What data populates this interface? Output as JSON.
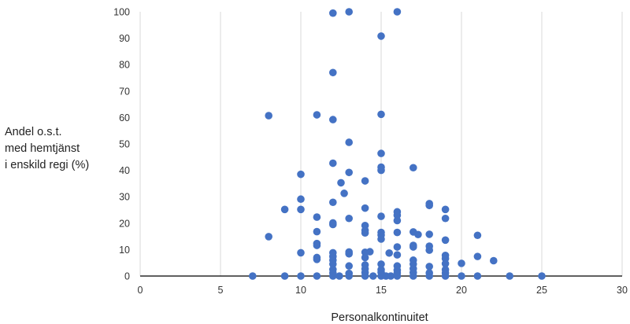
{
  "chart_data": {
    "type": "scatter",
    "title": "",
    "xlabel": "Personalkontinuitet",
    "ylabel_lines": [
      "Andel o.s.t.",
      "med hemtjänst",
      "i enskild regi (%)"
    ],
    "xlim": [
      0,
      30
    ],
    "ylim": [
      0,
      100
    ],
    "xticks": [
      "0",
      "5",
      "10",
      "15",
      "20",
      "25",
      "30"
    ],
    "yticks": [
      "0",
      "10",
      "20",
      "30",
      "40",
      "50",
      "60",
      "70",
      "80",
      "90",
      "100"
    ],
    "grid": "vertical",
    "marker_color": "#4472C4",
    "points": [
      [
        12,
        99.5
      ],
      [
        13,
        100
      ],
      [
        16,
        100
      ],
      [
        15,
        90.8
      ],
      [
        12,
        77
      ],
      [
        8,
        60.7
      ],
      [
        11,
        61
      ],
      [
        12,
        59.2
      ],
      [
        15,
        61.2
      ],
      [
        13,
        50.6
      ],
      [
        15,
        46.4
      ],
      [
        12,
        42.7
      ],
      [
        15,
        41.2
      ],
      [
        15,
        40
      ],
      [
        17,
        41
      ],
      [
        10,
        38.5
      ],
      [
        13,
        39.2
      ],
      [
        12.5,
        35.3
      ],
      [
        14,
        36
      ],
      [
        12.7,
        31.3
      ],
      [
        10,
        29.1
      ],
      [
        12,
        27.9
      ],
      [
        18,
        27.4
      ],
      [
        18,
        26.7
      ],
      [
        9,
        25.2
      ],
      [
        10,
        25.2
      ],
      [
        14,
        25.7
      ],
      [
        16,
        24.3
      ],
      [
        19,
        25.2
      ],
      [
        11,
        22.3
      ],
      [
        13,
        21.8
      ],
      [
        15,
        22.6
      ],
      [
        16,
        23
      ],
      [
        16,
        21
      ],
      [
        19,
        21.8
      ],
      [
        12,
        20.1
      ],
      [
        12,
        19.5
      ],
      [
        14,
        19.1
      ],
      [
        14,
        17.3
      ],
      [
        14,
        16.3
      ],
      [
        11,
        16.8
      ],
      [
        15,
        16.5
      ],
      [
        15,
        15.5
      ],
      [
        16,
        16.5
      ],
      [
        17,
        16.7
      ],
      [
        17.3,
        15.7
      ],
      [
        18,
        15.8
      ],
      [
        21,
        15.4
      ],
      [
        8,
        14.9
      ],
      [
        15,
        14
      ],
      [
        19,
        13.6
      ],
      [
        11,
        12.3
      ],
      [
        11,
        11.6
      ],
      [
        16,
        11
      ],
      [
        17,
        11.6
      ],
      [
        17,
        11
      ],
      [
        18,
        11.3
      ],
      [
        18,
        9.8
      ],
      [
        10,
        8.8
      ],
      [
        12,
        8.8
      ],
      [
        13,
        9.1
      ],
      [
        13,
        8.4
      ],
      [
        14,
        9
      ],
      [
        14.3,
        9.2
      ],
      [
        15.5,
        8.7
      ],
      [
        16,
        8
      ],
      [
        19,
        7.8
      ],
      [
        11,
        7
      ],
      [
        11,
        6.3
      ],
      [
        12,
        7.4
      ],
      [
        12,
        6
      ],
      [
        14,
        7
      ],
      [
        17,
        6
      ],
      [
        19,
        6.6
      ],
      [
        21,
        7.4
      ],
      [
        22,
        5.8
      ],
      [
        12,
        4.5
      ],
      [
        13,
        3.8
      ],
      [
        14,
        4.2
      ],
      [
        15,
        4.5
      ],
      [
        16,
        3.8
      ],
      [
        17,
        4.5
      ],
      [
        18,
        3.6
      ],
      [
        19,
        4.7
      ],
      [
        20,
        4.8
      ],
      [
        12,
        2.5
      ],
      [
        14,
        2.7
      ],
      [
        15,
        2.4
      ],
      [
        16,
        2.2
      ],
      [
        17,
        2.8
      ],
      [
        19,
        2.4
      ],
      [
        12,
        1.2
      ],
      [
        13,
        1
      ],
      [
        14,
        1.3
      ],
      [
        15,
        1.4
      ],
      [
        16,
        1.2
      ],
      [
        17,
        1.3
      ],
      [
        18,
        1.2
      ],
      [
        19,
        1.2
      ],
      [
        7,
        0
      ],
      [
        9,
        0
      ],
      [
        10,
        0
      ],
      [
        11,
        0
      ],
      [
        12,
        0
      ],
      [
        12.4,
        0
      ],
      [
        13,
        0
      ],
      [
        14,
        0
      ],
      [
        14.5,
        0
      ],
      [
        15,
        0
      ],
      [
        15.3,
        0
      ],
      [
        15.6,
        0
      ],
      [
        16,
        0
      ],
      [
        17,
        0
      ],
      [
        18,
        0
      ],
      [
        19,
        0
      ],
      [
        20,
        0
      ],
      [
        21,
        0
      ],
      [
        23,
        0
      ],
      [
        25,
        0
      ]
    ]
  }
}
